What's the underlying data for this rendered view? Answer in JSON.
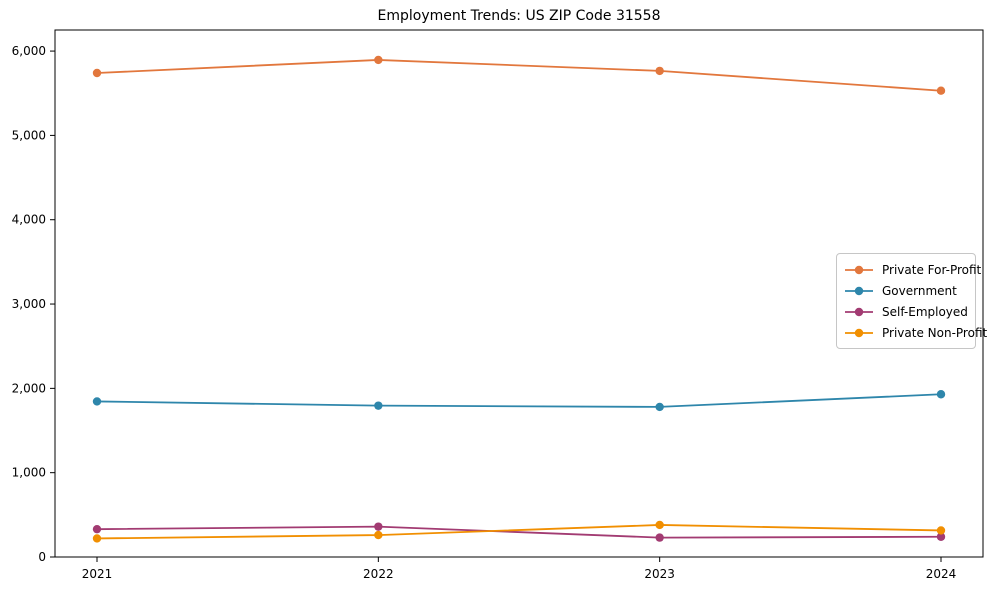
{
  "chart_data": {
    "type": "line",
    "title": "Employment Trends: US ZIP Code 31558",
    "xlabel": "",
    "ylabel": "",
    "x": [
      2021,
      2022,
      2023,
      2024
    ],
    "xtick_labels": [
      "2021",
      "2022",
      "2023",
      "2024"
    ],
    "yticks": [
      0,
      1000,
      2000,
      3000,
      4000,
      5000,
      6000
    ],
    "ytick_labels": [
      "0",
      "1,000",
      "2,000",
      "3,000",
      "4,000",
      "5,000",
      "6,000"
    ],
    "ylim": [
      0,
      6250
    ],
    "grid": false,
    "legend_position": "center right",
    "series": [
      {
        "name": "Private For-Profit",
        "color": "#E2773D",
        "values": [
          5740,
          5895,
          5765,
          5530
        ]
      },
      {
        "name": "Government",
        "color": "#2E86AB",
        "values": [
          1845,
          1795,
          1780,
          1930
        ]
      },
      {
        "name": "Self-Employed",
        "color": "#A23B72",
        "values": [
          330,
          360,
          230,
          240
        ]
      },
      {
        "name": "Private Non-Profit",
        "color": "#F18F01",
        "values": [
          220,
          260,
          380,
          315
        ]
      }
    ]
  }
}
